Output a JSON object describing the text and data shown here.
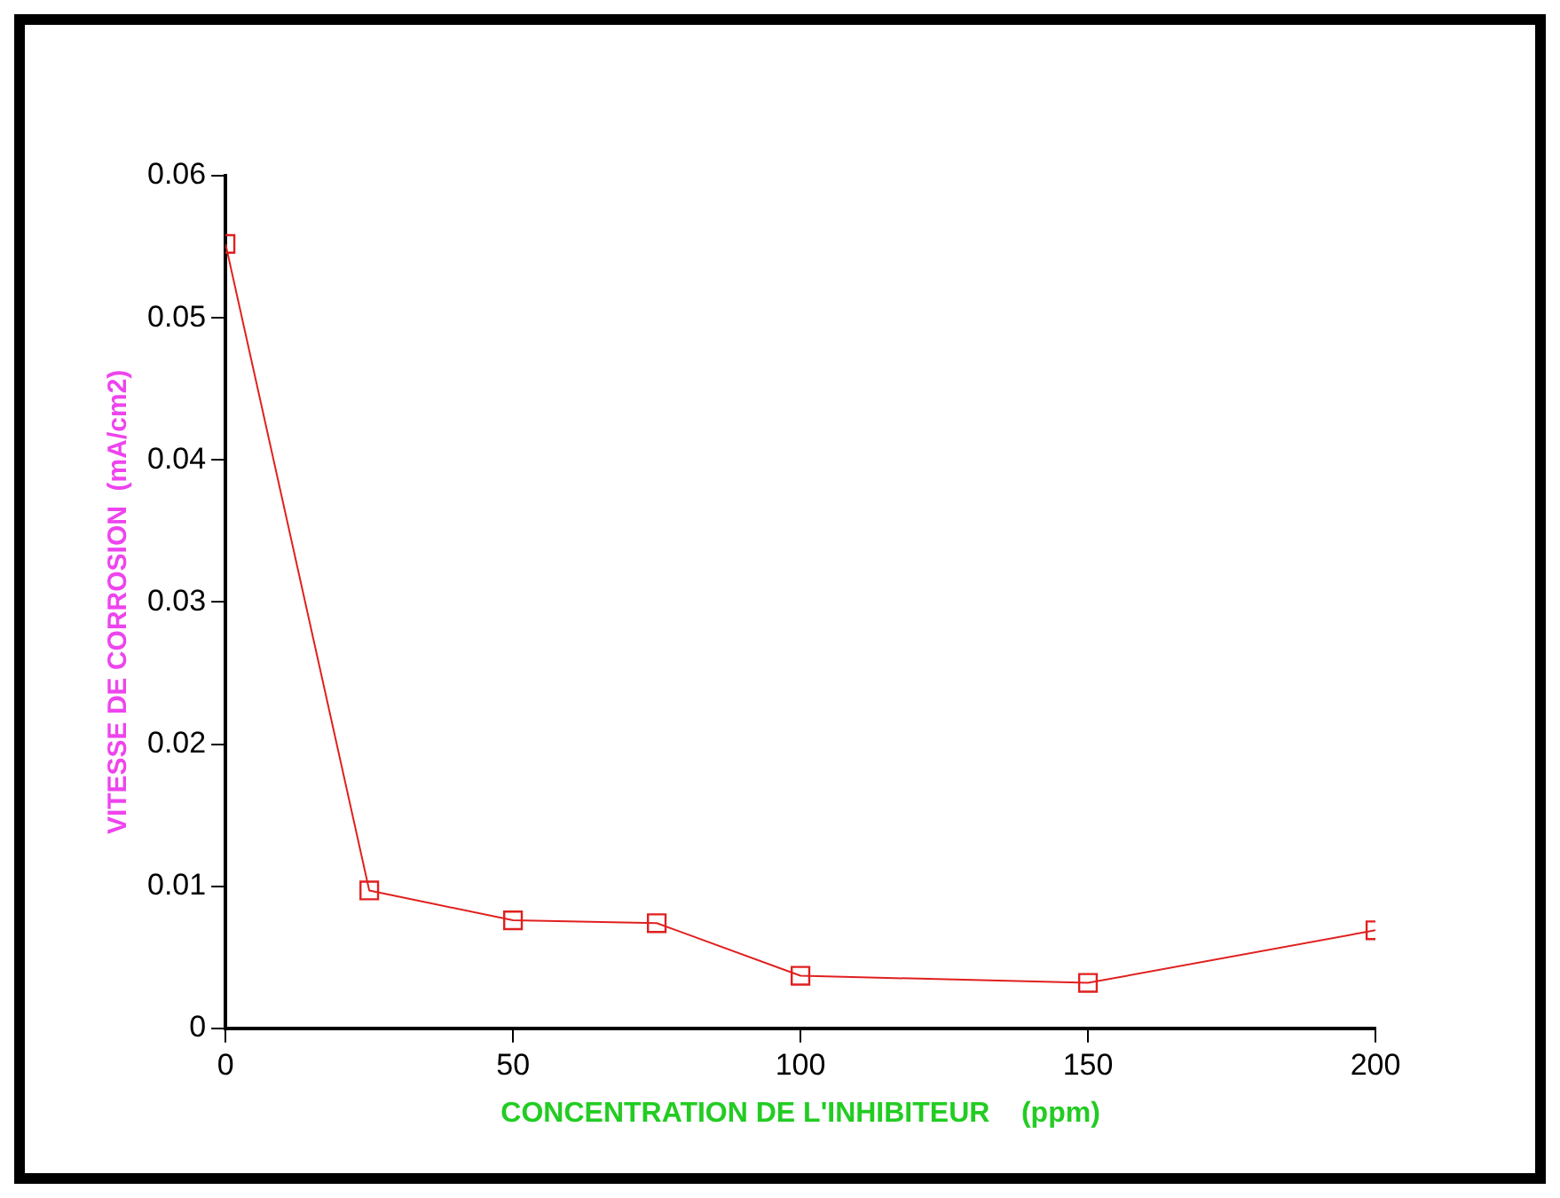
{
  "chart_data": {
    "type": "line",
    "xlabel": "CONCENTRATION DE L'INHIBITEUR    (ppm)",
    "ylabel": "VITESSE DE CORROSION  (mA/cm2)",
    "x": [
      0,
      25,
      50,
      75,
      100,
      150,
      200
    ],
    "series": [
      {
        "color": "#e0201f",
        "values": [
          0.0552,
          0.0097,
          0.0076,
          0.0074,
          0.0037,
          0.0032,
          0.0069
        ]
      }
    ],
    "xlim": [
      0,
      200
    ],
    "xticks": [
      0,
      50,
      100,
      150,
      200
    ],
    "ylim": [
      0,
      0.06
    ],
    "yticks": [
      0,
      0.01,
      0.02,
      0.03,
      0.04,
      0.05,
      0.06
    ],
    "grid": false,
    "legend": false,
    "marker": "square",
    "line_style": "solid"
  }
}
